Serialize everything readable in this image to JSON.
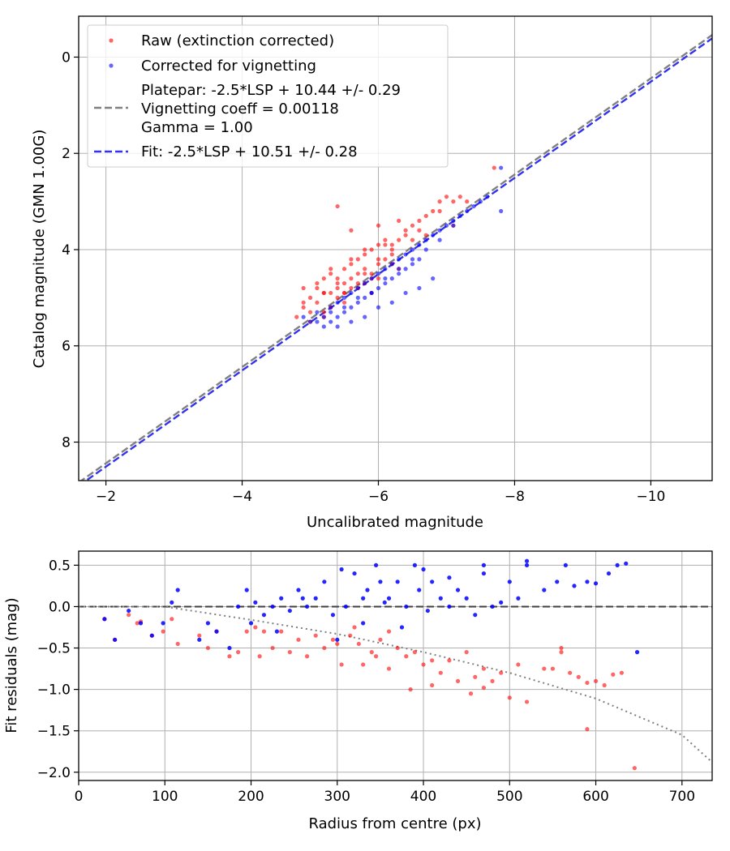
{
  "chart_data": [
    {
      "type": "scatter",
      "title": "",
      "xlabel": "Uncalibrated magnitude",
      "ylabel": "Catalog magnitude (GMN 1.00G)",
      "xlim": [
        -1.6,
        -10.9
      ],
      "ylim": [
        8.8,
        -0.85
      ],
      "xticks": [
        -2,
        -4,
        -6,
        -8,
        -10
      ],
      "yticks": [
        0,
        2,
        4,
        6,
        8
      ],
      "xtick_labels": [
        "−2",
        "−4",
        "−6",
        "−8",
        "−10"
      ],
      "ytick_labels": [
        "0",
        "2",
        "4",
        "6",
        "8"
      ],
      "grid": true,
      "legend_position": "top-left",
      "legend": {
        "raw": "Raw (extinction corrected)",
        "corrected": "Corrected for vignetting",
        "platepar_line1": "Platepar: -2.5*LSP + 10.44 +/- 0.29",
        "platepar_line2": "Vignetting coeff = 0.00118",
        "platepar_line3": "Gamma = 1.00",
        "fit": "Fit: -2.5*LSP + 10.51 +/- 0.28"
      },
      "colors": {
        "raw": "#ff0000",
        "corrected": "#0000ff",
        "platepar": "#808080",
        "fit": "#3333ee"
      },
      "series": [
        {
          "name": "Platepar line",
          "style": "dashed",
          "slope": 1,
          "intercept": 10.44
        },
        {
          "name": "Fit line",
          "style": "dashed",
          "slope": 1,
          "intercept": 10.51
        },
        {
          "name": "Raw (extinction corrected)",
          "x": [
            -4.8,
            -4.9,
            -5.0,
            -5.0,
            -5.1,
            -5.1,
            -5.2,
            -5.2,
            -5.2,
            -5.3,
            -5.3,
            -5.3,
            -5.4,
            -5.4,
            -5.4,
            -5.5,
            -5.5,
            -5.5,
            -5.6,
            -5.6,
            -5.6,
            -5.7,
            -5.7,
            -5.7,
            -5.8,
            -5.8,
            -5.8,
            -5.9,
            -5.9,
            -6.0,
            -6.0,
            -6.0,
            -6.1,
            -6.1,
            -6.2,
            -6.2,
            -6.3,
            -6.4,
            -6.5,
            -6.6,
            -6.7,
            -6.8,
            -6.9,
            -7.0,
            -7.1,
            -7.2,
            -7.3,
            -7.7,
            -5.4,
            -5.6,
            -6.0,
            -6.3,
            -5.0,
            -5.2,
            -5.5,
            -5.7,
            -5.9,
            -6.2,
            -6.5,
            -6.9,
            -4.9,
            -5.1,
            -5.3,
            -5.6,
            -5.8,
            -6.1,
            -6.4,
            -6.6,
            -7.1,
            -5.5,
            -5.9,
            -6.3,
            -4.9,
            -5.2,
            -5.4,
            -5.8,
            -6.0,
            -6.2,
            -6.7
          ],
          "y": [
            5.4,
            5.2,
            5.0,
            5.3,
            4.8,
            5.1,
            4.9,
            4.6,
            5.3,
            4.5,
            4.9,
            5.2,
            4.6,
            4.8,
            5.0,
            4.4,
            4.7,
            4.9,
            4.3,
            4.6,
            4.8,
            4.2,
            4.5,
            4.8,
            4.1,
            4.4,
            4.7,
            4.0,
            4.5,
            3.9,
            4.3,
            4.6,
            3.8,
            4.2,
            3.9,
            4.3,
            3.8,
            3.6,
            3.5,
            3.4,
            3.3,
            3.2,
            3.0,
            2.9,
            3.0,
            2.9,
            3.0,
            2.3,
            3.1,
            3.6,
            3.5,
            3.4,
            5.5,
            5.4,
            4.9,
            4.7,
            4.6,
            4.0,
            3.8,
            3.2,
            4.8,
            4.7,
            4.4,
            4.2,
            4.0,
            3.9,
            3.7,
            3.6,
            3.5,
            5.1,
            4.9,
            4.4,
            5.1,
            4.9,
            4.7,
            4.5,
            4.2,
            4.1,
            3.7
          ]
        },
        {
          "name": "Corrected for vignetting",
          "x": [
            -4.9,
            -5.0,
            -5.1,
            -5.1,
            -5.2,
            -5.3,
            -5.3,
            -5.4,
            -5.4,
            -5.5,
            -5.5,
            -5.6,
            -5.6,
            -5.7,
            -5.7,
            -5.8,
            -5.8,
            -5.9,
            -5.9,
            -6.0,
            -6.0,
            -6.1,
            -6.1,
            -6.2,
            -6.2,
            -6.3,
            -6.3,
            -6.4,
            -6.4,
            -6.5,
            -6.5,
            -6.6,
            -6.6,
            -6.7,
            -6.7,
            -6.8,
            -6.9,
            -7.0,
            -7.1,
            -7.2,
            -7.3,
            -7.4,
            -7.5,
            -7.6,
            -7.8,
            -7.8,
            -5.2,
            -5.4,
            -5.6,
            -5.8,
            -6.0,
            -6.2,
            -6.4,
            -6.6,
            -6.8,
            -5.3,
            -5.5,
            -5.7,
            -5.9,
            -6.1,
            -6.3,
            -6.5,
            -6.9,
            -7.1
          ],
          "y": [
            5.4,
            5.5,
            5.3,
            5.5,
            5.4,
            5.2,
            5.5,
            5.1,
            5.4,
            5.0,
            5.3,
            4.9,
            5.2,
            4.8,
            5.1,
            4.7,
            5.0,
            4.6,
            4.9,
            4.5,
            4.8,
            4.4,
            4.7,
            4.3,
            4.6,
            4.2,
            4.5,
            4.1,
            4.4,
            4.0,
            4.3,
            3.9,
            4.2,
            3.8,
            4.0,
            3.7,
            3.6,
            3.5,
            3.4,
            3.3,
            3.2,
            3.1,
            3.0,
            2.9,
            2.3,
            3.2,
            5.6,
            5.6,
            5.5,
            5.4,
            5.2,
            5.1,
            4.9,
            4.8,
            4.6,
            5.3,
            5.2,
            5.0,
            4.9,
            4.6,
            4.4,
            4.2,
            3.8,
            3.5
          ]
        }
      ]
    },
    {
      "type": "scatter",
      "title": "",
      "xlabel": "Radius from centre (px)",
      "ylabel": "Fit residuals (mag)",
      "xlim": [
        0,
        735
      ],
      "ylim": [
        -2.1,
        0.67
      ],
      "xticks": [
        0,
        100,
        200,
        300,
        400,
        500,
        600,
        700
      ],
      "yticks": [
        0.5,
        0.0,
        -0.5,
        -1.0,
        -1.5,
        -2.0
      ],
      "xtick_labels": [
        "0",
        "100",
        "200",
        "300",
        "400",
        "500",
        "600",
        "700"
      ],
      "ytick_labels": [
        "0.5",
        "0.0",
        "−0.5",
        "−1.0",
        "−1.5",
        "−2.0"
      ],
      "grid": true,
      "colors": {
        "raw": "#ff0000",
        "corrected": "#0000ff",
        "zero": "#404040",
        "model": "#808080"
      },
      "series": [
        {
          "name": "Zero line",
          "style": "dashed",
          "value": 0.0
        },
        {
          "name": "Vignetting model",
          "style": "dotted",
          "x": [
            0,
            100,
            200,
            300,
            400,
            500,
            600,
            700,
            735
          ],
          "y": [
            0.0,
            0.0,
            -0.16,
            -0.33,
            -0.55,
            -0.8,
            -1.11,
            -1.55,
            -1.88
          ]
        },
        {
          "name": "Raw residuals",
          "x": [
            30,
            42,
            58,
            68,
            72,
            85,
            98,
            108,
            115,
            140,
            150,
            160,
            175,
            185,
            195,
            205,
            210,
            215,
            225,
            235,
            245,
            255,
            265,
            275,
            285,
            295,
            305,
            315,
            325,
            330,
            340,
            350,
            360,
            370,
            380,
            390,
            400,
            410,
            420,
            430,
            440,
            450,
            460,
            470,
            480,
            490,
            500,
            510,
            520,
            540,
            550,
            560,
            570,
            580,
            590,
            600,
            610,
            620,
            630,
            645,
            300,
            320,
            345,
            360,
            385,
            410,
            455,
            470,
            560,
            590
          ],
          "y": [
            -0.15,
            -0.4,
            -0.1,
            -0.2,
            -0.18,
            -0.35,
            -0.3,
            -0.15,
            -0.45,
            -0.35,
            -0.5,
            -0.3,
            -0.6,
            -0.55,
            -0.3,
            -0.25,
            -0.6,
            -0.3,
            -0.5,
            -0.3,
            -0.55,
            -0.4,
            -0.6,
            -0.35,
            -0.5,
            -0.4,
            -0.7,
            -0.35,
            -0.45,
            -0.7,
            -0.55,
            -0.4,
            -0.3,
            -0.5,
            -0.6,
            -0.55,
            -0.7,
            -0.65,
            -0.8,
            -0.65,
            -0.9,
            -0.55,
            -0.85,
            -0.75,
            -0.9,
            -0.8,
            -1.1,
            -0.7,
            -1.15,
            -0.75,
            -0.75,
            -0.55,
            -0.8,
            -0.85,
            -0.92,
            -0.9,
            -0.95,
            -0.82,
            -0.8,
            -1.95,
            -0.45,
            -0.25,
            -0.6,
            -0.75,
            -1.0,
            -0.95,
            -1.05,
            -0.98,
            -0.5,
            -1.48
          ]
        },
        {
          "name": "Corrected residuals",
          "x": [
            30,
            42,
            58,
            72,
            85,
            98,
            108,
            115,
            140,
            150,
            160,
            175,
            185,
            195,
            205,
            215,
            225,
            235,
            245,
            255,
            265,
            275,
            285,
            295,
            305,
            310,
            320,
            330,
            335,
            345,
            350,
            360,
            370,
            380,
            390,
            395,
            400,
            410,
            420,
            430,
            440,
            450,
            460,
            470,
            480,
            490,
            500,
            510,
            520,
            540,
            555,
            565,
            575,
            590,
            600,
            615,
            625,
            635,
            648,
            200,
            230,
            260,
            300,
            330,
            355,
            375,
            405,
            430,
            470,
            520
          ],
          "y": [
            -0.15,
            -0.4,
            -0.05,
            -0.2,
            -0.35,
            -0.2,
            0.05,
            0.2,
            -0.4,
            -0.2,
            -0.3,
            -0.5,
            0.0,
            0.2,
            0.05,
            -0.1,
            0.0,
            0.1,
            -0.05,
            0.2,
            0.0,
            0.1,
            0.3,
            -0.1,
            0.45,
            0.0,
            0.4,
            0.1,
            0.2,
            0.5,
            0.3,
            0.1,
            0.3,
            0.0,
            0.5,
            0.2,
            0.45,
            0.3,
            0.1,
            0.0,
            0.2,
            0.1,
            -0.1,
            0.5,
            0.0,
            0.05,
            0.3,
            0.1,
            0.55,
            0.2,
            0.3,
            0.5,
            0.25,
            0.3,
            0.28,
            0.4,
            0.5,
            0.52,
            -0.55,
            -0.2,
            -0.3,
            0.1,
            -0.4,
            -0.2,
            0.05,
            -0.25,
            -0.05,
            0.35,
            0.4,
            0.5
          ]
        }
      ]
    }
  ]
}
